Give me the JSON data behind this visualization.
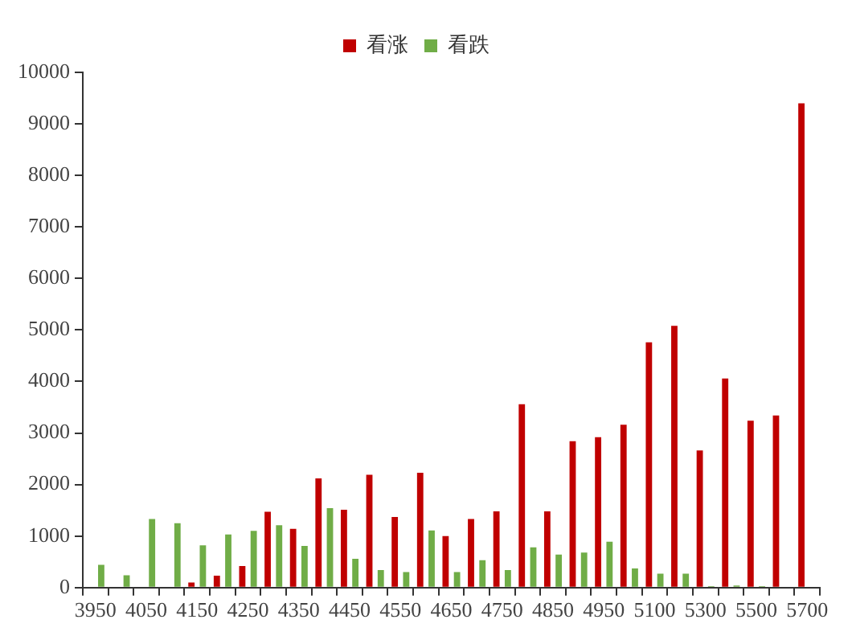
{
  "chart_data": {
    "type": "bar",
    "categories": [
      "3950",
      null,
      "4050",
      null,
      "4150",
      null,
      "4250",
      null,
      "4350",
      null,
      "4450",
      null,
      "4550",
      null,
      "4650",
      null,
      "4750",
      null,
      "4850",
      null,
      "4950",
      null,
      "5100",
      null,
      "5300",
      null,
      "5500",
      null,
      "5700"
    ],
    "series": [
      {
        "name": "看涨",
        "color": "#c00000",
        "values": [
          0,
          0,
          null,
          null,
          100,
          230,
          420,
          1470,
          1140,
          2120,
          1510,
          2190,
          1370,
          2230,
          1000,
          1330,
          1480,
          3560,
          1480,
          2840,
          2920,
          3160,
          4760,
          5080,
          2660,
          4060,
          3240,
          3340,
          9400
        ]
      },
      {
        "name": "看跌",
        "color": "#70ad47",
        "values": [
          440,
          240,
          1330,
          1250,
          820,
          1030,
          1100,
          1210,
          810,
          1540,
          560,
          340,
          300,
          1110,
          300,
          530,
          340,
          780,
          640,
          680,
          890,
          370,
          270,
          270,
          30,
          40,
          30,
          0,
          0
        ]
      }
    ],
    "ylim": [
      0,
      10000
    ],
    "yticks": [
      0,
      1000,
      2000,
      3000,
      4000,
      5000,
      6000,
      7000,
      8000,
      9000,
      10000
    ],
    "grid": false,
    "legend": "top"
  }
}
